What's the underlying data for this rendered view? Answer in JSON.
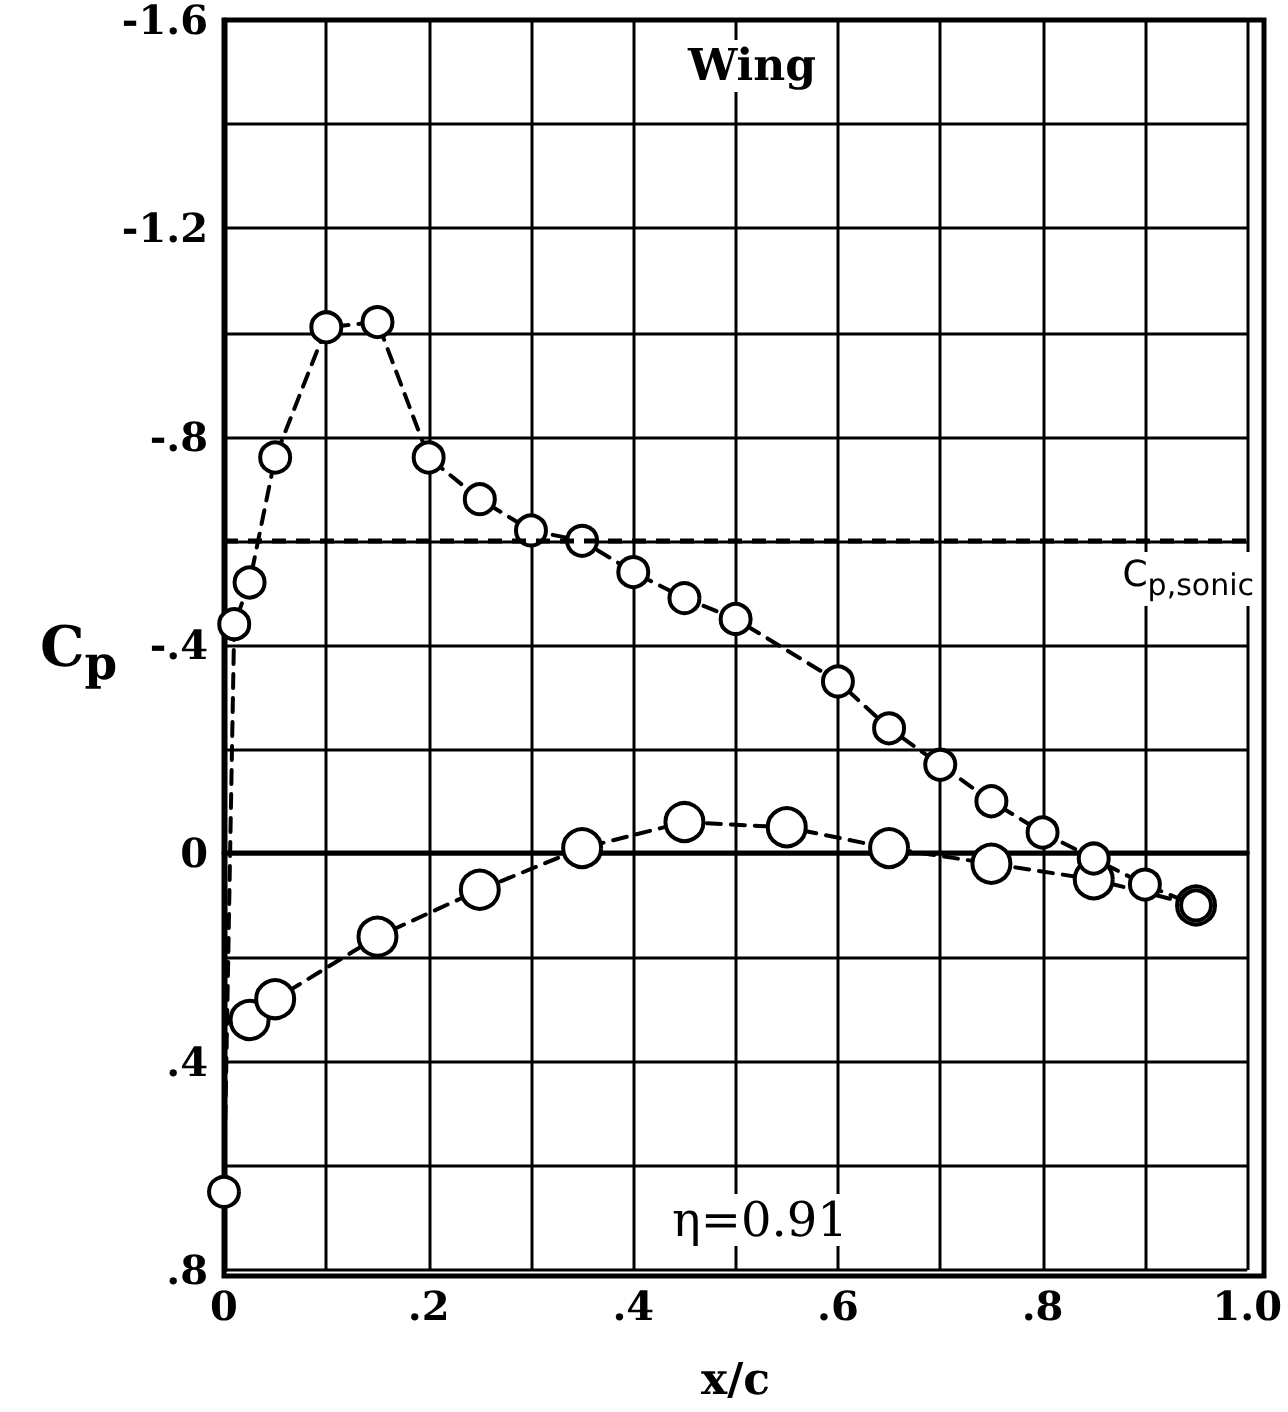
{
  "chart_data": {
    "type": "line",
    "title": "Wing",
    "xlabel": "x/c",
    "ylabel": "C$_{p}$",
    "annotations": [
      "η=0.91"
    ],
    "series": [
      {
        "x": [
          0,
          0.01,
          0.025,
          0.05,
          0.1,
          0.15,
          0.2,
          0.25,
          0.3,
          0.35,
          0.4,
          0.45,
          0.5,
          0.6,
          0.65,
          0.7,
          0.75,
          0.8,
          0.85,
          0.9,
          0.95
        ],
        "values": [
          0.65,
          -0.44,
          -0.52,
          -0.76,
          -1.01,
          -1.02,
          -0.76,
          -0.68,
          -0.62,
          -0.6,
          -0.54,
          -0.49,
          -0.45,
          -0.33,
          -0.24,
          -0.17,
          -0.1,
          -0.04,
          0.01,
          0.06,
          0.1
        ],
        "color": "#000000"
      },
      {
        "x": [
          0.025,
          0.05,
          0.15,
          0.25,
          0.35,
          0.45,
          0.55,
          0.65,
          0.75,
          0.85,
          0.95
        ],
        "values": [
          0.32,
          0.28,
          0.16,
          0.07,
          -0.01,
          -0.06,
          -0.05,
          -0.01,
          0.02,
          0.05,
          0.1
        ],
        "color": "#000000"
      }
    ],
    "xlim": [
      0,
      1.0
    ],
    "xticks": [
      0,
      {
        "value": 0.2,
        "label": ".2"
      },
      {
        "value": 0.4,
        "label": ".4"
      },
      {
        "value": 0.6,
        "label": ".6"
      },
      {
        "value": 0.8,
        "label": ".8"
      },
      {
        "value": 1.0,
        "label": "1.0"
      }
    ],
    "ylim": [
      0.8,
      -1.6
    ],
    "yticks": [
      {
        "value": -1.6,
        "label": "-1.6"
      },
      {
        "value": -1.2,
        "label": "-1.2"
      },
      {
        "value": -0.8,
        "label": "-.8"
      },
      {
        "value": -0.4,
        "label": "-.4"
      },
      0,
      {
        "value": 0.4,
        "label": ".4"
      },
      {
        "value": 0.8,
        "label": ".8"
      }
    ],
    "ref_lines": [
      {
        "axis": "y",
        "value": -0.6,
        "label": "C$_{p,sonic}$",
        "line_style": "dashed"
      }
    ],
    "grid": true,
    "marker": "circle",
    "line_style": "dashed"
  }
}
